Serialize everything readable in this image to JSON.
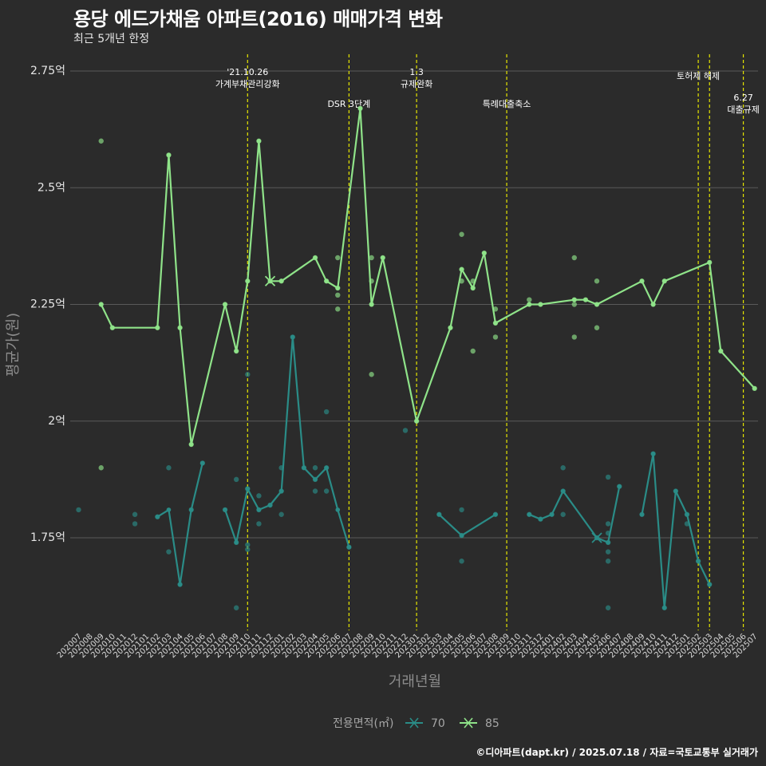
{
  "header": {
    "title": "용당 에드가채움 아파트(2016) 매매가격 변화",
    "subtitle": "최근 5개년 한정"
  },
  "caption": "©디아파트(dapt.kr) / 2025.07.18 / 자료=국토교통부 실거래가",
  "colors": {
    "background": "#2b2b2b",
    "grid": "#5a5a5a",
    "event_line": "#e6e600",
    "series_70": "#2a8c87",
    "series_85": "#8fe389"
  },
  "chart_data": {
    "type": "line",
    "title": "용당 에드가채움 아파트(2016) 매매가격 변화",
    "subtitle": "최근 5개년 한정",
    "xlabel": "거래년월",
    "ylabel": "평균가(원)",
    "ylim": [
      1.53,
      2.8
    ],
    "yticks": [
      {
        "value": 1.75,
        "label": "1.75억"
      },
      {
        "value": 2.0,
        "label": "2억"
      },
      {
        "value": 2.25,
        "label": "2.25억"
      },
      {
        "value": 2.5,
        "label": "2.5억"
      },
      {
        "value": 2.75,
        "label": "2.75억"
      }
    ],
    "categories": [
      "202007",
      "202008",
      "202009",
      "202010",
      "202011",
      "202012",
      "202101",
      "202102",
      "202103",
      "202104",
      "202105",
      "202106",
      "202107",
      "202108",
      "202109",
      "202110",
      "202111",
      "202112",
      "202201",
      "202202",
      "202203",
      "202204",
      "202205",
      "202206",
      "202207",
      "202208",
      "202209",
      "202210",
      "202211",
      "202212",
      "202301",
      "202302",
      "202303",
      "202304",
      "202305",
      "202306",
      "202307",
      "202308",
      "202309",
      "202310",
      "202311",
      "202312",
      "202401",
      "202402",
      "202403",
      "202404",
      "202405",
      "202406",
      "202407",
      "202408",
      "202409",
      "202410",
      "202411",
      "202412",
      "202501",
      "202502",
      "202503",
      "202504",
      "202505",
      "202506",
      "202507"
    ],
    "legend": {
      "title": "전용면적(㎡)",
      "position": "bottom"
    },
    "grid": true,
    "series": [
      {
        "name": "70",
        "color": "#2a8c87",
        "line": [
          [
            7,
            1.795
          ],
          [
            8,
            1.81
          ],
          [
            9,
            1.65
          ],
          [
            10,
            1.81
          ],
          [
            11,
            1.91
          ],
          null,
          [
            13,
            1.81
          ],
          [
            14,
            1.74
          ],
          [
            15,
            1.855
          ],
          [
            16,
            1.81
          ],
          [
            17,
            1.82
          ],
          [
            18,
            1.85
          ],
          [
            19,
            2.18
          ],
          [
            20,
            1.9
          ],
          [
            21,
            1.875
          ],
          [
            22,
            1.9
          ],
          [
            23,
            1.81
          ],
          [
            24,
            1.73
          ],
          null,
          [
            32,
            1.8
          ],
          [
            34,
            1.755
          ],
          [
            37,
            1.8
          ],
          null,
          [
            40,
            1.8
          ],
          [
            41,
            1.79
          ],
          [
            42,
            1.8
          ],
          [
            43,
            1.85
          ],
          [
            46,
            1.75
          ],
          [
            47,
            1.74
          ],
          [
            48,
            1.86
          ],
          null,
          [
            50,
            1.8
          ],
          [
            51,
            1.93
          ],
          [
            52,
            1.6
          ],
          [
            53,
            1.85
          ],
          [
            54,
            1.8
          ],
          [
            55,
            1.7
          ],
          [
            56,
            1.65
          ]
        ],
        "points": [
          [
            0,
            1.81
          ],
          [
            5,
            1.8
          ],
          [
            5,
            1.78
          ],
          [
            7,
            1.795
          ],
          [
            8,
            1.9
          ],
          [
            8,
            1.72
          ],
          [
            9,
            1.65
          ],
          [
            10,
            1.81
          ],
          [
            11,
            1.91
          ],
          [
            13,
            1.81
          ],
          [
            14,
            1.875
          ],
          [
            14,
            1.6
          ],
          [
            14,
            1.74
          ],
          [
            15,
            2.1
          ],
          [
            15,
            1.735
          ],
          [
            15,
            1.725
          ],
          [
            15,
            1.855
          ],
          [
            16,
            1.84
          ],
          [
            16,
            1.78
          ],
          [
            16,
            1.81
          ],
          [
            17,
            1.82
          ],
          [
            18,
            1.9
          ],
          [
            18,
            1.8
          ],
          [
            18,
            1.85
          ],
          [
            19,
            2.18
          ],
          [
            20,
            1.9
          ],
          [
            21,
            1.9
          ],
          [
            21,
            1.85
          ],
          [
            21,
            1.875
          ],
          [
            22,
            2.02
          ],
          [
            22,
            1.85
          ],
          [
            22,
            1.9
          ],
          [
            24,
            1.73
          ],
          [
            29,
            1.98
          ],
          [
            32,
            1.8
          ],
          [
            34,
            1.81
          ],
          [
            34,
            1.7
          ],
          [
            34,
            1.755
          ],
          [
            37,
            1.8
          ],
          [
            40,
            1.8
          ],
          [
            41,
            1.79
          ],
          [
            42,
            1.8
          ],
          [
            43,
            1.9
          ],
          [
            43,
            1.8
          ],
          [
            43,
            1.85
          ],
          [
            46,
            1.75
          ],
          [
            47,
            1.88
          ],
          [
            47,
            1.78
          ],
          [
            47,
            1.76
          ],
          [
            47,
            1.72
          ],
          [
            47,
            1.7
          ],
          [
            47,
            1.6
          ],
          [
            47,
            1.74
          ],
          [
            48,
            1.86
          ],
          [
            50,
            1.8
          ],
          [
            51,
            1.93
          ],
          [
            52,
            1.6
          ],
          [
            53,
            1.85
          ],
          [
            54,
            1.8
          ],
          [
            54,
            1.78
          ],
          [
            55,
            1.7
          ],
          [
            56,
            1.65
          ]
        ],
        "marker_month": 46
      },
      {
        "name": "85",
        "color": "#8fe389",
        "line": [
          [
            2,
            2.25
          ],
          [
            3,
            2.2
          ],
          [
            7,
            2.2
          ],
          [
            8,
            2.57
          ],
          [
            9,
            2.2
          ],
          [
            10,
            1.95
          ],
          [
            13,
            2.25
          ],
          [
            14,
            2.15
          ],
          [
            15,
            2.3
          ],
          [
            16,
            2.6
          ],
          [
            17,
            2.3
          ],
          [
            18,
            2.3
          ],
          [
            21,
            2.35
          ],
          [
            22,
            2.3
          ],
          [
            23,
            2.285
          ],
          [
            25,
            2.67
          ],
          [
            26,
            2.25
          ],
          [
            27,
            2.35
          ],
          [
            30,
            2.0
          ],
          [
            33,
            2.2
          ],
          [
            34,
            2.325
          ],
          [
            35,
            2.285
          ],
          [
            36,
            2.36
          ],
          [
            37,
            2.21
          ],
          [
            40,
            2.25
          ],
          [
            41,
            2.25
          ],
          [
            44,
            2.26
          ],
          [
            45,
            2.26
          ],
          [
            46,
            2.25
          ],
          [
            50,
            2.3
          ],
          [
            51,
            2.25
          ],
          [
            52,
            2.3
          ],
          [
            56,
            2.34
          ],
          [
            57,
            2.15
          ],
          [
            60,
            2.07
          ]
        ],
        "points": [
          [
            2,
            2.6
          ],
          [
            2,
            1.9
          ],
          [
            2,
            2.25
          ],
          [
            3,
            2.2
          ],
          [
            7,
            2.2
          ],
          [
            8,
            2.57
          ],
          [
            9,
            2.2
          ],
          [
            10,
            1.95
          ],
          [
            13,
            2.25
          ],
          [
            14,
            2.15
          ],
          [
            15,
            2.3
          ],
          [
            16,
            2.6
          ],
          [
            17,
            2.3
          ],
          [
            18,
            2.3
          ],
          [
            21,
            2.35
          ],
          [
            22,
            2.3
          ],
          [
            23,
            2.35
          ],
          [
            23,
            2.27
          ],
          [
            23,
            2.24
          ],
          [
            23,
            2.285
          ],
          [
            25,
            2.67
          ],
          [
            26,
            2.35
          ],
          [
            26,
            2.3
          ],
          [
            26,
            2.1
          ],
          [
            26,
            2.25
          ],
          [
            27,
            2.35
          ],
          [
            30,
            2.0
          ],
          [
            33,
            2.2
          ],
          [
            34,
            2.4
          ],
          [
            34,
            2.3
          ],
          [
            34,
            2.325
          ],
          [
            35,
            2.3
          ],
          [
            35,
            2.15
          ],
          [
            35,
            2.285
          ],
          [
            36,
            2.36
          ],
          [
            37,
            2.24
          ],
          [
            37,
            2.18
          ],
          [
            37,
            2.21
          ],
          [
            40,
            2.26
          ],
          [
            40,
            2.25
          ],
          [
            41,
            2.25
          ],
          [
            44,
            2.35
          ],
          [
            44,
            2.25
          ],
          [
            44,
            2.18
          ],
          [
            44,
            2.26
          ],
          [
            45,
            2.26
          ],
          [
            46,
            2.3
          ],
          [
            46,
            2.2
          ],
          [
            46,
            2.25
          ],
          [
            50,
            2.3
          ],
          [
            51,
            2.25
          ],
          [
            52,
            2.3
          ],
          [
            56,
            2.34
          ],
          [
            57,
            2.15
          ],
          [
            60,
            2.07
          ]
        ],
        "marker_month": 17
      }
    ],
    "events": [
      {
        "month": 15,
        "lines": [
          "'21.10.26",
          "가계부채관리강화"
        ],
        "row": 0
      },
      {
        "month": 24,
        "lines": [
          "DSR 3단계"
        ],
        "row": 1
      },
      {
        "month": 30,
        "lines": [
          "1.3",
          "규제완화"
        ],
        "row": 0
      },
      {
        "month": 38,
        "lines": [
          "특례대출축소"
        ],
        "row": 1
      },
      {
        "month": 55,
        "lines": [
          "토허제 해제"
        ],
        "row": 0
      },
      {
        "month": 56,
        "lines": [],
        "row": 0
      },
      {
        "month": 59,
        "lines": [
          "6.27",
          "대출규제"
        ],
        "row": 2
      }
    ]
  }
}
